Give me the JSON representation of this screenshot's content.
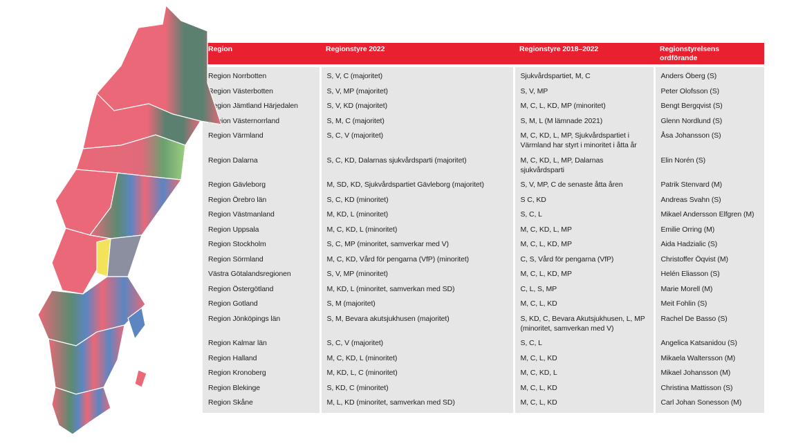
{
  "table": {
    "header": [
      "Region",
      "Regionstyre 2022",
      "Regionstyre 2018–2022",
      "Regionstyrelsens ordförande"
    ],
    "rows": [
      [
        "Region Norrbotten",
        "S, V, C (majoritet)",
        "Sjukvårdspartiet, M, C",
        "Anders Öberg (S)"
      ],
      [
        "Region Västerbotten",
        "S, V, MP (majoritet)",
        "S, V, MP",
        "Peter Olofsson (S)"
      ],
      [
        "Region Jämtland Härjedalen",
        "S, V, KD (majoritet)",
        "M, C, L, KD, MP (minoritet)",
        "Bengt Bergqvist (S)"
      ],
      [
        "Region Västernorrland",
        "S, M, C (majoritet)",
        "S, M, L (M lämnade 2021)",
        "Glenn Nordlund (S)"
      ],
      [
        "Region Värmland",
        "S, C, V (majoritet)",
        "M, C, KD, L, MP,  Sjukvårdspartiet i Värmland har styrt i minoritet i åtta år",
        "Åsa Johansson (S)"
      ],
      [
        "Region Dalarna",
        "S, C, KD, Dalarnas sjukvårdsparti (majoritet)",
        "M, C, KD, L, MP, Dalarnas sjukvårdsparti",
        "Elin Norén (S)"
      ],
      [
        "Region Gävleborg",
        "M, SD, KD, Sjukvårdspartiet Gävleborg (majoritet)",
        "S, V, MP, C de senaste åtta åren",
        "Patrik Stenvard (M)"
      ],
      [
        "Region Örebro län",
        "S, C, KD (minoritet)",
        "S C, KD",
        "Andreas Svahn (S)"
      ],
      [
        "Region Västmanland",
        "M, KD, L (minoritet)",
        "S, C, L",
        "Mikael Andersson Elfgren (M)"
      ],
      [
        "Region Uppsala",
        "M, C, KD, L (minoritet)",
        "M, C, KD, L, MP",
        "Emilie Orring (M)"
      ],
      [
        "Region Stockholm",
        "S, C, MP (minoritet, samverkar med V)",
        "M, C, L, KD, MP",
        "Aida Hadzialic (S)"
      ],
      [
        "Region Sörmland",
        "M, C, KD, Vård för pengarna (VfP) (minoritet)",
        "C, S, Vård för pengarna (VfP)",
        "Christoffer Öqvist (M)"
      ],
      [
        "Västra Götalandsregionen",
        "S, V, MP (minoritet)",
        "M, C, L, KD, MP",
        "Helén Eliasson (S)"
      ],
      [
        "Region Östergötland",
        "M, KD, L (minoritet, samverkan med SD)",
        "C, L, S, MP",
        "Marie Morell (M)"
      ],
      [
        "Region Gotland",
        "S, M (majoritet)",
        "M, C, L, KD",
        "Meit Fohlin (S)"
      ],
      [
        "Region Jönköpings län",
        "S, M, Bevara akutsjukhusen (majoritet)",
        "S, KD, C, Bevara Akutsjukhusen, L, MP (minoritet, samverkan med V)",
        "Rachel De Basso (S)"
      ],
      [
        "Region Kalmar län",
        "S, C, V (majoritet)",
        "S, C, L",
        "Angelica Katsanidou (S)"
      ],
      [
        "Region Halland",
        "M, C, KD, L (minoritet)",
        "M, C, L, KD",
        "Mikaela Waltersson (M)"
      ],
      [
        "Region Kronoberg",
        "M, KD, L, C (minoritet)",
        "M, C, KD, L",
        "Mikael Johansson (M)"
      ],
      [
        "Region Blekinge",
        "S, KD, C (minoritet)",
        "M, C, L, KD",
        "Christina Mattisson (S)"
      ],
      [
        "Region Skåne",
        "M, L, KD (minoritet, samverkan med SD)",
        "M, C, L, KD",
        "Carl Johan Sonesson (M)"
      ]
    ]
  }
}
